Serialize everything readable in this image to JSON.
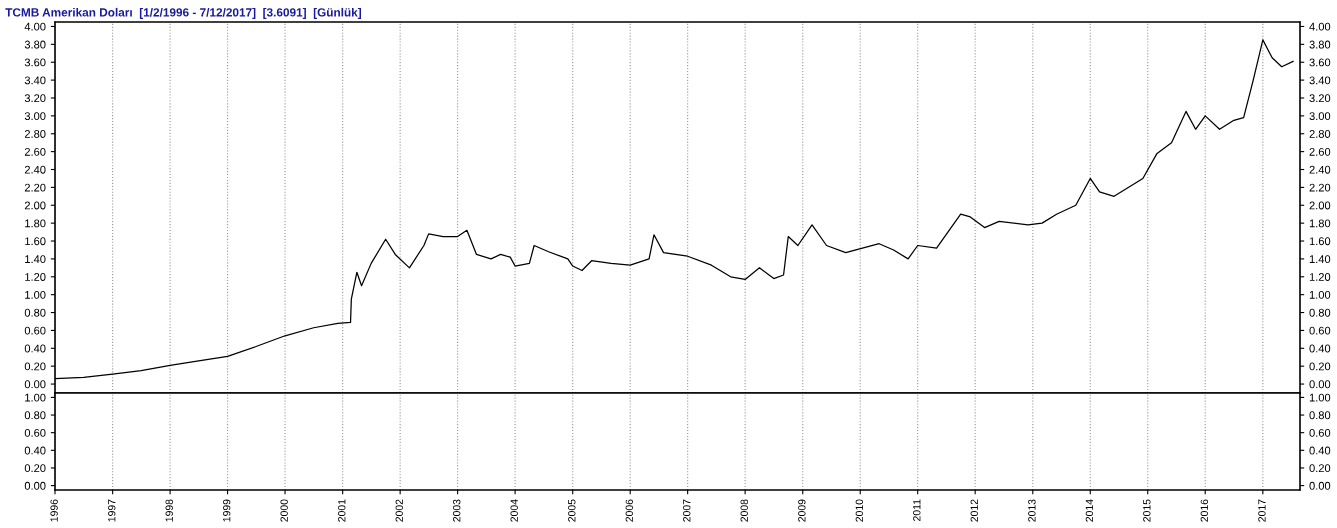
{
  "chart_data": [
    {
      "type": "line",
      "title": "TCMB Amerikan Doları  [1/2/1996 - 7/12/2017]  [3.6091]  [Günlük]",
      "x": [
        "1996-01-02",
        "1996-07",
        "1997-01",
        "1997-07",
        "1998-01",
        "1998-07",
        "1999-01",
        "1999-07",
        "2000-01",
        "2000-07",
        "2000-12",
        "2001-02-20",
        "2001-02-25",
        "2001-04",
        "2001-05",
        "2001-07",
        "2001-10",
        "2001-12",
        "2002-03",
        "2002-06",
        "2002-07",
        "2002-10",
        "2003-01",
        "2003-03",
        "2003-05",
        "2003-08",
        "2003-10",
        "2003-12",
        "2004-01",
        "2004-04",
        "2004-05",
        "2004-08",
        "2004-12",
        "2005-01",
        "2005-03",
        "2005-05",
        "2005-09",
        "2006-01",
        "2006-05",
        "2006-06",
        "2006-08",
        "2007-01",
        "2007-06",
        "2007-10",
        "2008-01",
        "2008-04",
        "2008-07",
        "2008-09",
        "2008-10",
        "2008-12",
        "2009-03",
        "2009-06",
        "2009-10",
        "2010-05",
        "2010-08",
        "2010-11",
        "2011-01",
        "2011-05",
        "2011-08",
        "2011-10",
        "2011-12",
        "2012-03",
        "2012-06",
        "2012-12",
        "2013-03",
        "2013-06",
        "2013-10",
        "2014-01",
        "2014-03",
        "2014-06",
        "2014-12",
        "2015-03",
        "2015-06",
        "2015-09",
        "2015-11",
        "2016-01",
        "2016-04",
        "2016-07",
        "2016-09",
        "2016-11",
        "2017-01",
        "2017-03",
        "2017-05",
        "2017-07-12"
      ],
      "series": [
        {
          "color": "#000000",
          "values": [
            0.06,
            0.075,
            0.11,
            0.15,
            0.21,
            0.26,
            0.31,
            0.42,
            0.54,
            0.63,
            0.68,
            0.69,
            0.95,
            1.25,
            1.1,
            1.35,
            1.62,
            1.45,
            1.3,
            1.55,
            1.68,
            1.65,
            1.65,
            1.72,
            1.45,
            1.4,
            1.45,
            1.42,
            1.32,
            1.35,
            1.55,
            1.48,
            1.4,
            1.32,
            1.27,
            1.38,
            1.35,
            1.33,
            1.4,
            1.67,
            1.47,
            1.43,
            1.33,
            1.2,
            1.17,
            1.3,
            1.18,
            1.22,
            1.65,
            1.55,
            1.78,
            1.55,
            1.47,
            1.57,
            1.5,
            1.4,
            1.55,
            1.52,
            1.75,
            1.9,
            1.87,
            1.75,
            1.82,
            1.78,
            1.8,
            1.9,
            2.0,
            2.3,
            2.15,
            2.1,
            2.3,
            2.58,
            2.7,
            3.05,
            2.85,
            3.0,
            2.85,
            2.95,
            2.98,
            3.4,
            3.85,
            3.65,
            3.55,
            3.61
          ]
        }
      ],
      "xlim": [
        "1996-01-01",
        "2017-08-25"
      ],
      "xticks": [
        "1996",
        "1997",
        "1998",
        "1999",
        "2000",
        "2001",
        "2002",
        "2003",
        "2004",
        "2005",
        "2006",
        "2007",
        "2008",
        "2009",
        "2010",
        "2011",
        "2012",
        "2013",
        "2014",
        "2015",
        "2016",
        "2017"
      ],
      "ylim": [
        -0.1,
        4.05
      ],
      "yticks": [
        {
          "value": 0,
          "label": "0.00"
        },
        {
          "value": 0.2,
          "label": "0.20"
        },
        {
          "value": 0.4,
          "label": "0.40"
        },
        {
          "value": 0.6,
          "label": "0.60"
        },
        {
          "value": 0.8,
          "label": "0.80"
        },
        {
          "value": 1,
          "label": "1.00"
        },
        {
          "value": 1.2,
          "label": "1.20"
        },
        {
          "value": 1.4,
          "label": "1.40"
        },
        {
          "value": 1.6,
          "label": "1.60"
        },
        {
          "value": 1.8,
          "label": "1.80"
        },
        {
          "value": 2,
          "label": "2.00"
        },
        {
          "value": 2.2,
          "label": "2.20"
        },
        {
          "value": 2.4,
          "label": "2.40"
        },
        {
          "value": 2.6,
          "label": "2.60"
        },
        {
          "value": 2.8,
          "label": "2.80"
        },
        {
          "value": 3,
          "label": "3.00"
        },
        {
          "value": 3.2,
          "label": "3.20"
        },
        {
          "value": 3.4,
          "label": "3.40"
        },
        {
          "value": 3.6,
          "label": "3.60"
        },
        {
          "value": 3.8,
          "label": "3.80"
        },
        {
          "value": 4,
          "label": "4.00"
        }
      ],
      "y2lim": [
        -0.1,
        4.05
      ],
      "y2ticks": [
        {
          "value": 0,
          "label": "0.00"
        },
        {
          "value": 0.2,
          "label": "0.20"
        },
        {
          "value": 0.4,
          "label": "0.40"
        },
        {
          "value": 0.6,
          "label": "0.60"
        },
        {
          "value": 0.8,
          "label": "0.80"
        },
        {
          "value": 1,
          "label": "1.00"
        },
        {
          "value": 1.2,
          "label": "1.20"
        },
        {
          "value": 1.4,
          "label": "1.40"
        },
        {
          "value": 1.6,
          "label": "1.60"
        },
        {
          "value": 1.8,
          "label": "1.80"
        },
        {
          "value": 2,
          "label": "2.00"
        },
        {
          "value": 2.2,
          "label": "2.20"
        },
        {
          "value": 2.4,
          "label": "2.40"
        },
        {
          "value": 2.6,
          "label": "2.60"
        },
        {
          "value": 2.8,
          "label": "2.80"
        },
        {
          "value": 3,
          "label": "3.00"
        },
        {
          "value": 3.2,
          "label": "3.20"
        },
        {
          "value": 3.4,
          "label": "3.40"
        },
        {
          "value": 3.6,
          "label": "3.60"
        },
        {
          "value": 3.8,
          "label": "3.80"
        },
        {
          "value": 4,
          "label": "4.00"
        }
      ],
      "grid": "x",
      "tick_labels": "y"
    },
    {
      "type": "line",
      "xlim": [
        "1996-01-01",
        "2017-08-25"
      ],
      "xticks": [
        "1996",
        "1997",
        "1998",
        "1999",
        "2000",
        "2001",
        "2002",
        "2003",
        "2004",
        "2005",
        "2006",
        "2007",
        "2008",
        "2009",
        "2010",
        "2011",
        "2012",
        "2013",
        "2014",
        "2015",
        "2016",
        "2017"
      ],
      "ylim": [
        -0.05,
        1.05
      ],
      "yticks": [
        {
          "value": 0,
          "label": "0.00"
        },
        {
          "value": 0.2,
          "label": "0.20"
        },
        {
          "value": 0.4,
          "label": "0.40"
        },
        {
          "value": 0.6,
          "label": "0.60"
        },
        {
          "value": 0.8,
          "label": "0.80"
        },
        {
          "value": 1,
          "label": "1.00"
        }
      ],
      "y2lim": [
        -0.05,
        1.05
      ],
      "y2ticks": [
        {
          "value": 0,
          "label": "0.00"
        },
        {
          "value": 0.2,
          "label": "0.20"
        },
        {
          "value": 0.4,
          "label": "0.40"
        },
        {
          "value": 0.6,
          "label": "0.60"
        },
        {
          "value": 0.8,
          "label": "0.80"
        },
        {
          "value": 1,
          "label": "1.00"
        }
      ],
      "grid": "x"
    }
  ]
}
